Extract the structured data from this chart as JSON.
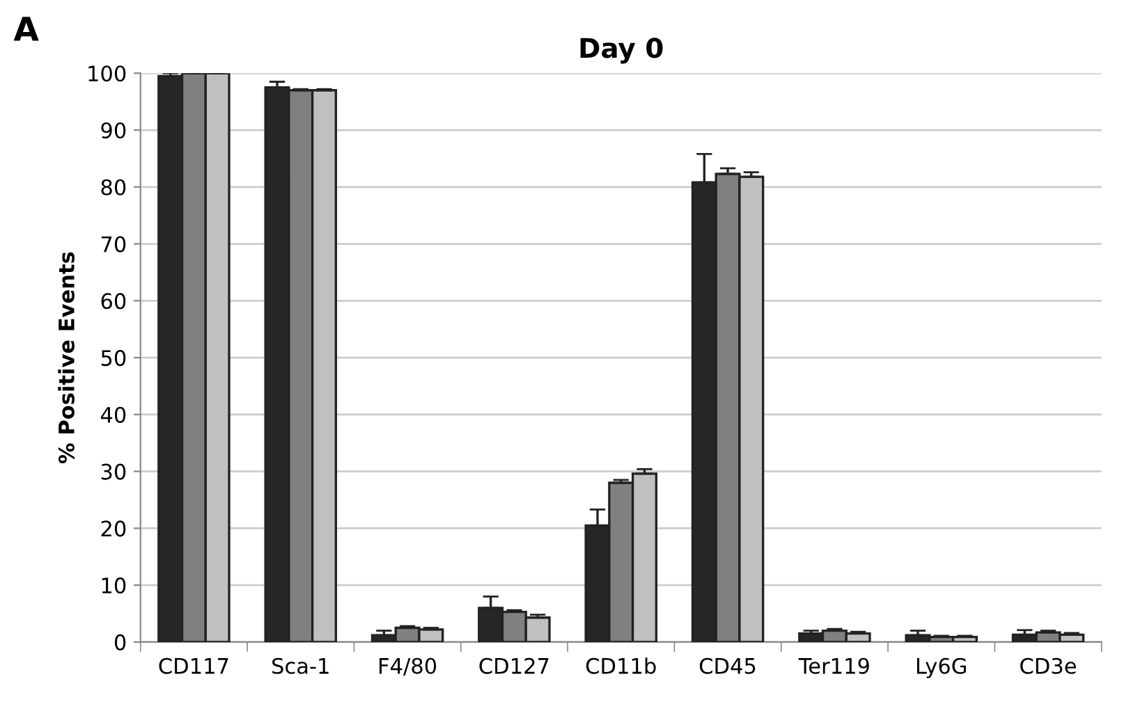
{
  "chart_data": {
    "type": "bar",
    "title": "Day 0",
    "ylabel": "% Positive Events",
    "annotations": [
      "A"
    ],
    "categories": [
      "CD117",
      "Sca-1",
      "F4/80",
      "CD127",
      "CD11b",
      "CD45",
      "Ter119",
      "Ly6G",
      "CD3e"
    ],
    "series": [
      {
        "color": "#262626",
        "values": [
          99.5,
          97.5,
          1.2,
          6,
          20.5,
          80.8,
          1.5,
          1.2,
          1.3
        ],
        "errors": [
          [
            99.5,
            100
          ],
          [
            97.5,
            98.5
          ],
          [
            1.2,
            2
          ],
          [
            6,
            8
          ],
          [
            20.5,
            23.3
          ],
          [
            80.8,
            85.8
          ],
          [
            1.5,
            2
          ],
          [
            1.2,
            2
          ],
          [
            1.3,
            2.1
          ]
        ]
      },
      {
        "color": "#808080",
        "values": [
          100,
          97,
          2.5,
          5.3,
          28,
          82.3,
          2,
          0.9,
          1.7
        ],
        "errors": [
          [
            100,
            100.2
          ],
          [
            97,
            97.2
          ],
          [
            2.5,
            2.8
          ],
          [
            5.3,
            5.6
          ],
          [
            28,
            28.5
          ],
          [
            82.3,
            83.3
          ],
          [
            2,
            2.3
          ],
          [
            0.9,
            1.1
          ],
          [
            1.7,
            2
          ]
        ]
      },
      {
        "color": "#c0c0c0",
        "values": [
          100,
          97,
          2.2,
          4.3,
          29.6,
          81.8,
          1.5,
          0.9,
          1.3
        ],
        "errors": [
          [
            100,
            100.2
          ],
          [
            97,
            97.2
          ],
          [
            2.2,
            2.5
          ],
          [
            4.3,
            4.8
          ],
          [
            29.6,
            30.4
          ],
          [
            81.8,
            82.6
          ],
          [
            1.5,
            1.8
          ],
          [
            0.9,
            1.1
          ],
          [
            1.3,
            1.6
          ]
        ]
      }
    ],
    "ylim": [
      0,
      100
    ],
    "yticks": [
      0,
      10,
      20,
      30,
      40,
      50,
      60,
      70,
      80,
      90,
      100
    ],
    "grid": "y"
  }
}
